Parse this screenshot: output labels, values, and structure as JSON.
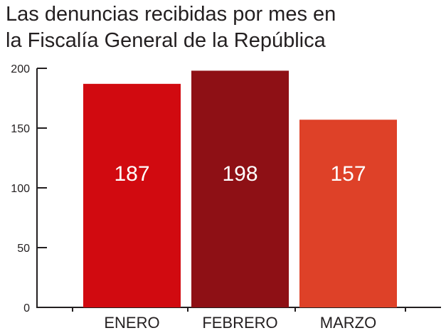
{
  "title_lines": [
    "Las denuncias recibidas por mes en",
    "la Fiscalía General de la República"
  ],
  "chart_data": {
    "type": "bar",
    "title": "Las denuncias recibidas por mes en la Fiscalía General de la República",
    "categories": [
      "ENERO",
      "FEBRERO",
      "MARZO"
    ],
    "values": [
      187,
      198,
      157
    ],
    "data_labels": [
      "187",
      "198",
      "157"
    ],
    "bar_colors": [
      "#d10a10",
      "#8e1015",
      "#de4128"
    ],
    "ylim": [
      0,
      200
    ],
    "yticks": [
      0,
      50,
      100,
      150,
      200
    ],
    "ytick_labels": [
      "0",
      "50",
      "100",
      "150",
      "200"
    ],
    "xlabel": "",
    "ylabel": "",
    "grid": false,
    "legend": "none"
  }
}
